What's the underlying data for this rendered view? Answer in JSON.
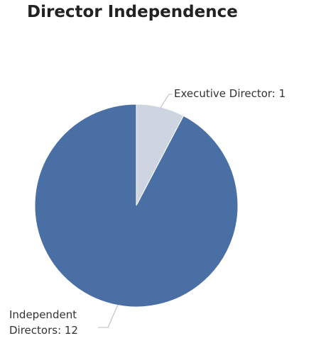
{
  "chart_data": {
    "type": "pie",
    "title": "Director Independence",
    "values": [
      1,
      12
    ],
    "value_labels": [
      "Executive Director: 1",
      "Independent Directors: 12"
    ],
    "colors": [
      "#cdd5e0",
      "#4a6fa5"
    ]
  }
}
